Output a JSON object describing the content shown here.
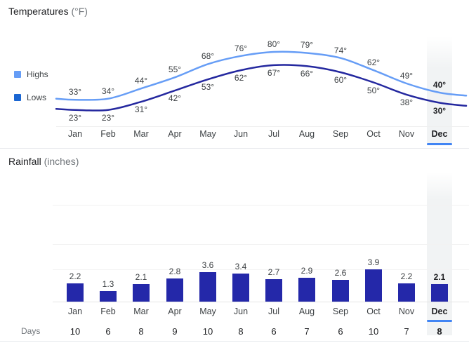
{
  "selected_month": "Dec",
  "colors": {
    "highs_line": "#669df6",
    "lows_line": "#24289f",
    "bar": "#2428a9",
    "legend_highs_swatch": "#669df6",
    "legend_lows_swatch": "#1a66d2",
    "selection_underline": "#4285f4",
    "highlight_band": "#f1f3f4"
  },
  "temperature": {
    "title": "Temperatures",
    "unit": "(°F)",
    "legend": {
      "highs": "Highs",
      "lows": "Lows"
    }
  },
  "rainfall": {
    "title": "Rainfall",
    "unit": "(inches)"
  },
  "days": {
    "label": "Days"
  },
  "chart_data": [
    {
      "type": "line",
      "title": "Temperatures (°F)",
      "categories": [
        "Jan",
        "Feb",
        "Mar",
        "Apr",
        "May",
        "Jun",
        "Jul",
        "Aug",
        "Sep",
        "Oct",
        "Nov",
        "Dec"
      ],
      "series": [
        {
          "name": "Highs",
          "values": [
            33,
            34,
            44,
            55,
            68,
            76,
            80,
            79,
            74,
            62,
            49,
            40
          ],
          "color": "#669df6"
        },
        {
          "name": "Lows",
          "values": [
            23,
            23,
            31,
            42,
            53,
            62,
            67,
            66,
            60,
            50,
            38,
            30
          ],
          "color": "#24289f"
        }
      ],
      "value_suffix": "°",
      "selected_category": "Dec",
      "legend_position": "left",
      "grid": false
    },
    {
      "type": "bar",
      "title": "Rainfall (inches)",
      "categories": [
        "Jan",
        "Feb",
        "Mar",
        "Apr",
        "May",
        "Jun",
        "Jul",
        "Aug",
        "Sep",
        "Oct",
        "Nov",
        "Dec"
      ],
      "values": [
        2.2,
        1.3,
        2.1,
        2.8,
        3.6,
        3.4,
        2.7,
        2.9,
        2.6,
        3.9,
        2.2,
        2.1
      ],
      "selected_category": "Dec",
      "grid": true
    },
    {
      "type": "table",
      "title": "Days",
      "categories": [
        "Jan",
        "Feb",
        "Mar",
        "Apr",
        "May",
        "Jun",
        "Jul",
        "Aug",
        "Sep",
        "Oct",
        "Nov",
        "Dec"
      ],
      "values": [
        10,
        6,
        8,
        9,
        10,
        8,
        6,
        7,
        6,
        10,
        7,
        8
      ],
      "selected_category": "Dec"
    }
  ]
}
